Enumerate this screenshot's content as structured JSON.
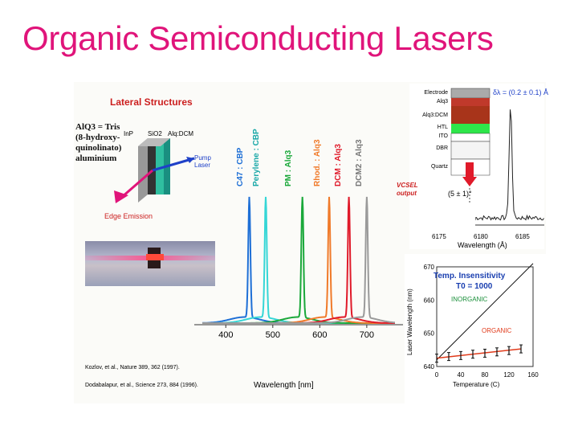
{
  "slide": {
    "title": "Organic Semiconducting Lasers"
  },
  "lateral": {
    "heading": "Lateral Structures",
    "alq_def": [
      "AlQ3 = Tris",
      "(8-hydroxy-",
      "quinolinato)",
      "aluminium"
    ],
    "device_labels": [
      "InP",
      "SiO2",
      "Alq:DCM"
    ],
    "pump": [
      "Pump",
      "Laser"
    ],
    "edge": "Edge Emission"
  },
  "references": {
    "ref1": "Kozlov, et al., Nature 389, 362 (1997).",
    "ref2": "Dodabalapur, et al., Science 273, 884 (1996)."
  },
  "vcsel": {
    "layers": [
      "Electrode",
      "Alq3",
      "Alq3:DCM",
      "HTL",
      "ITO",
      "DBR",
      "Quartz"
    ],
    "output": [
      "VCSEL",
      "output"
    ],
    "angle": "(5 ± 1)°",
    "linewidth": "δλ = (0.2 ± 0.1) Å",
    "x_ticks": [
      "6175",
      "6180",
      "6185"
    ],
    "xlabel": "Wavelength (Å)"
  },
  "colors": {
    "title": "#e0147a",
    "temp_title": "#1a3fb0",
    "inorganic": "#1a8f3a",
    "organic": "#e03a1a",
    "heading": "#cc1f1f"
  },
  "chart_data": [
    {
      "type": "line",
      "title": "",
      "xlabel": "Wavelength [nm]",
      "ylabel": "",
      "xlim": [
        350,
        760
      ],
      "x_ticks": [
        400,
        500,
        600,
        700
      ],
      "legend": "top (vertical labels above peaks)",
      "series": [
        {
          "name": "C47 : CBP",
          "peak": 450,
          "color": "#1e6fd6"
        },
        {
          "name": "Perylene : CBP",
          "peak": 485,
          "color": "#35d6d6"
        },
        {
          "name": "PM : Alq3",
          "peak": 563,
          "color": "#1aa83a"
        },
        {
          "name": "Rhod. : Alq3",
          "peak": 620,
          "color": "#f07a2a"
        },
        {
          "name": "DCM : Alq3",
          "peak": 662,
          "color": "#e01a2a"
        },
        {
          "name": "DCM2 : Alq3",
          "peak": 700,
          "color": "#9a9a9a"
        }
      ]
    },
    {
      "type": "scatter",
      "title": "Temp. Insensitivity",
      "subtitle": "T0 = 1000",
      "xlabel": "Temperature (C)",
      "ylabel": "Laser Wavelength (nm)",
      "xlim": [
        0,
        160
      ],
      "ylim": [
        640,
        670
      ],
      "x_ticks": [
        0,
        40,
        80,
        120,
        160
      ],
      "y_ticks": [
        640,
        650,
        660,
        670
      ],
      "annotations": [
        "INORGANIC",
        "ORGANIC"
      ],
      "series": [
        {
          "name": "INORGANIC",
          "x": [
            0,
            160
          ],
          "y": [
            642,
            671
          ]
        },
        {
          "name": "ORGANIC",
          "x": [
            0,
            20,
            40,
            60,
            80,
            100,
            120,
            140
          ],
          "y": [
            642.5,
            643,
            643.3,
            643.7,
            644,
            644.4,
            644.8,
            645.3
          ]
        }
      ]
    }
  ]
}
